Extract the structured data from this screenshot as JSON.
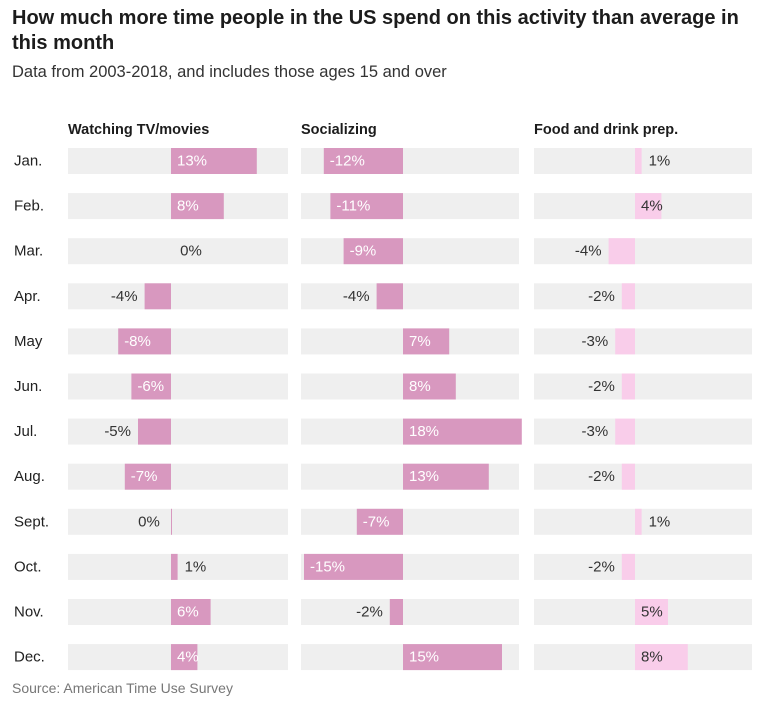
{
  "header": {
    "title": "How much more time people in the US spend on this activity than average in this month",
    "subtitle": "Data from 2003-2018, and includes those ages 15 and over"
  },
  "footer": {
    "source": "Source: American Time Use Survey"
  },
  "colors": {
    "track": "#efefef",
    "tv_socializing_bar": "#d898bf",
    "food_bar": "#f9cdea",
    "label_inside": "#ffffff",
    "label_outside": "#333333"
  },
  "chart_data": {
    "type": "bar",
    "orientation": "horizontal",
    "categories": [
      "Jan.",
      "Feb.",
      "Mar.",
      "Apr.",
      "May",
      "Jun.",
      "Jul.",
      "Aug.",
      "Sept.",
      "Oct.",
      "Nov.",
      "Dec."
    ],
    "series": [
      {
        "name": "Watching TV/movies",
        "unit": "%",
        "values": [
          13,
          8,
          0,
          -4,
          -8,
          -6,
          -5,
          -7,
          0,
          1,
          6,
          4
        ]
      },
      {
        "name": "Socializing",
        "unit": "%",
        "values": [
          -12,
          -11,
          -9,
          -4,
          7,
          8,
          18,
          13,
          -7,
          -15,
          -2,
          15
        ]
      },
      {
        "name": "Food and drink prep.",
        "unit": "%",
        "values": [
          1,
          4,
          -4,
          -2,
          -3,
          -2,
          -3,
          -2,
          1,
          -2,
          5,
          8
        ]
      }
    ],
    "grid": false,
    "legend": "none"
  }
}
